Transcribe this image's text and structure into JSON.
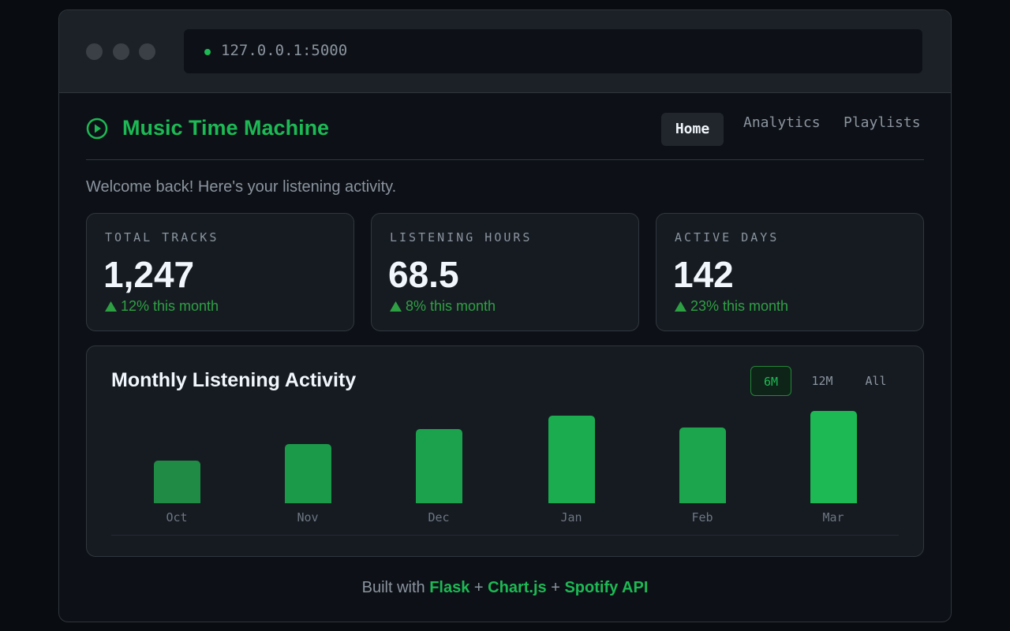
{
  "browser": {
    "url": "127.0.0.1:5000"
  },
  "header": {
    "title": "Music Time Machine",
    "nav": [
      "Home",
      "Analytics",
      "Playlists"
    ]
  },
  "welcome": "Welcome back! Here's your listening activity.",
  "stats": [
    {
      "label": "TOTAL TRACKS",
      "value": "1,247",
      "change": "12% this month"
    },
    {
      "label": "LISTENING HOURS",
      "value": "68.5",
      "change": "8% this month"
    },
    {
      "label": "ACTIVE DAYS",
      "value": "142",
      "change": "23% this month"
    }
  ],
  "chart": {
    "type": "bar",
    "title": "Monthly Listening Activity",
    "ranges": [
      "6M",
      "12M",
      "All"
    ],
    "categories": [
      "Oct",
      "Nov",
      "Dec",
      "Jan",
      "Feb",
      "Mar"
    ],
    "values": [
      54,
      75,
      94,
      111,
      96,
      117
    ],
    "colors": [
      "#1f8b45",
      "#1b9a49",
      "#1ca24c",
      "#1cac50",
      "#1ca54d",
      "#1db954"
    ]
  },
  "footer": {
    "parts": [
      "Built with",
      "Flask",
      "+",
      "Chart.js",
      "+",
      "Spotify API"
    ]
  }
}
